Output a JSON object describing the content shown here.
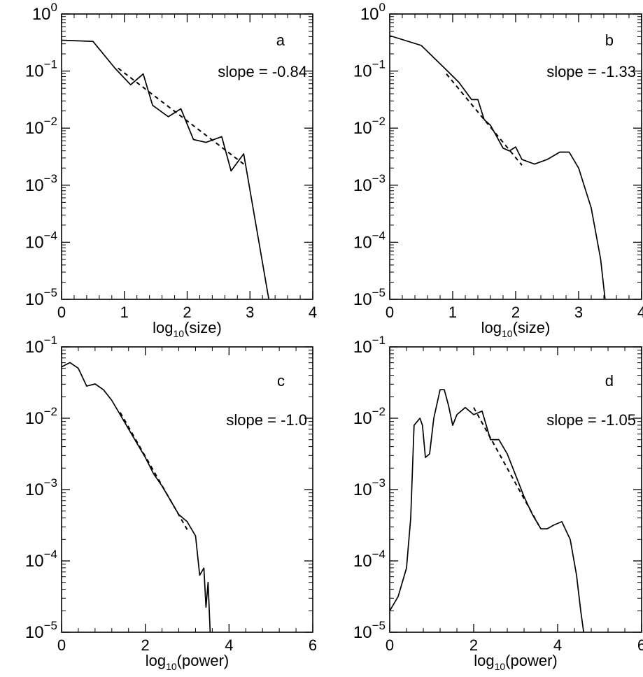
{
  "chart_data": [
    {
      "panel": "a",
      "type": "line",
      "xlabel_base": "log",
      "xlabel_sub": "10",
      "xlabel_tail": "(size)",
      "annotation": "slope = -0.84",
      "xlim": [
        0,
        4
      ],
      "ylim_log10": [
        -5,
        0
      ],
      "xticks": [
        "0",
        "1",
        "2",
        "3",
        "4"
      ],
      "yticks_exp": [
        "0",
        "−1",
        "−2",
        "−3",
        "−4",
        "−5"
      ],
      "series": [
        {
          "style": "solid",
          "x": [
            0.0,
            0.5,
            0.85,
            1.1,
            1.3,
            1.45,
            1.7,
            1.9,
            2.1,
            2.3,
            2.55,
            2.7,
            2.9,
            3.3
          ],
          "log10_y": [
            -0.46,
            -0.48,
            -0.95,
            -1.24,
            -1.05,
            -1.6,
            -1.8,
            -1.66,
            -2.2,
            -2.25,
            -2.15,
            -2.75,
            -2.45,
            -5.0
          ]
        },
        {
          "style": "dashed",
          "x": [
            0.9,
            2.9
          ],
          "log10_y": [
            -0.95,
            -2.63
          ]
        }
      ]
    },
    {
      "panel": "b",
      "type": "line",
      "xlabel_base": "log",
      "xlabel_sub": "10",
      "xlabel_tail": "(size)",
      "annotation": "slope = -1.33",
      "xlim": [
        0,
        4
      ],
      "ylim_log10": [
        -5,
        0
      ],
      "xticks": [
        "0",
        "1",
        "2",
        "3",
        "4"
      ],
      "yticks_exp": [
        "0",
        "−1",
        "−2",
        "−3",
        "−4",
        "−5"
      ],
      "series": [
        {
          "style": "solid",
          "x": [
            0.0,
            0.5,
            0.9,
            1.1,
            1.3,
            1.4,
            1.5,
            1.6,
            1.7,
            1.8,
            1.9,
            2.0,
            2.1,
            2.3,
            2.5,
            2.7,
            2.85,
            3.0,
            3.2,
            3.35,
            3.42
          ],
          "log10_y": [
            -0.38,
            -0.55,
            -0.98,
            -1.2,
            -1.5,
            -1.5,
            -1.85,
            -1.95,
            -2.15,
            -2.35,
            -2.4,
            -2.33,
            -2.55,
            -2.63,
            -2.55,
            -2.42,
            -2.42,
            -2.7,
            -3.4,
            -4.3,
            -5.0
          ]
        },
        {
          "style": "dashed",
          "x": [
            0.9,
            2.1
          ],
          "log10_y": [
            -1.05,
            -2.65
          ]
        }
      ]
    },
    {
      "panel": "c",
      "type": "line",
      "xlabel_base": "log",
      "xlabel_sub": "10",
      "xlabel_tail": "(power)",
      "annotation": "slope = -1.0",
      "xlim": [
        0,
        6
      ],
      "ylim_log10": [
        -5,
        -1
      ],
      "xticks": [
        "0",
        "2",
        "4",
        "6"
      ],
      "yticks_exp": [
        "−1",
        "−2",
        "−3",
        "−4",
        "−5"
      ],
      "series": [
        {
          "style": "solid",
          "x": [
            0.0,
            0.2,
            0.4,
            0.6,
            0.8,
            1.0,
            1.2,
            1.4,
            1.6,
            1.8,
            2.0,
            2.2,
            2.4,
            2.6,
            2.8,
            3.0,
            3.2,
            3.3,
            3.4,
            3.45,
            3.5,
            3.55
          ],
          "log10_y": [
            -1.28,
            -1.22,
            -1.3,
            -1.55,
            -1.52,
            -1.6,
            -1.75,
            -1.95,
            -2.15,
            -2.35,
            -2.55,
            -2.78,
            -2.95,
            -3.15,
            -3.35,
            -3.45,
            -3.65,
            -4.2,
            -4.1,
            -4.65,
            -4.3,
            -5.0
          ]
        },
        {
          "style": "dashed",
          "x": [
            1.4,
            3.0
          ],
          "log10_y": [
            -1.92,
            -3.56
          ]
        }
      ]
    },
    {
      "panel": "d",
      "type": "line",
      "xlabel_base": "log",
      "xlabel_sub": "10",
      "xlabel_tail": "(power)",
      "annotation": "slope = -1.05",
      "xlim": [
        0,
        6
      ],
      "ylim_log10": [
        -5,
        -1
      ],
      "xticks": [
        "0",
        "2",
        "4",
        "6"
      ],
      "yticks_exp": [
        "−1",
        "−2",
        "−3",
        "−4",
        "−5"
      ],
      "series": [
        {
          "style": "solid",
          "x": [
            0.0,
            0.2,
            0.4,
            0.5,
            0.58,
            0.65,
            0.72,
            0.78,
            0.85,
            0.95,
            1.05,
            1.2,
            1.3,
            1.4,
            1.5,
            1.6,
            1.8,
            2.0,
            2.2,
            2.4,
            2.6,
            2.8,
            3.0,
            3.2,
            3.4,
            3.6,
            3.75,
            3.9,
            4.1,
            4.3,
            4.45,
            4.55,
            4.62
          ],
          "log10_y": [
            -4.7,
            -4.5,
            -4.1,
            -3.4,
            -2.1,
            -2.05,
            -2.0,
            -2.1,
            -2.55,
            -2.5,
            -2.0,
            -1.6,
            -1.6,
            -1.82,
            -2.1,
            -1.95,
            -1.85,
            -1.95,
            -1.9,
            -2.3,
            -2.3,
            -2.5,
            -2.8,
            -3.1,
            -3.35,
            -3.55,
            -3.55,
            -3.5,
            -3.45,
            -3.7,
            -4.2,
            -4.7,
            -5.0
          ]
        },
        {
          "style": "dashed",
          "x": [
            2.0,
            3.55
          ],
          "log10_y": [
            -1.85,
            -3.5
          ]
        }
      ]
    }
  ]
}
